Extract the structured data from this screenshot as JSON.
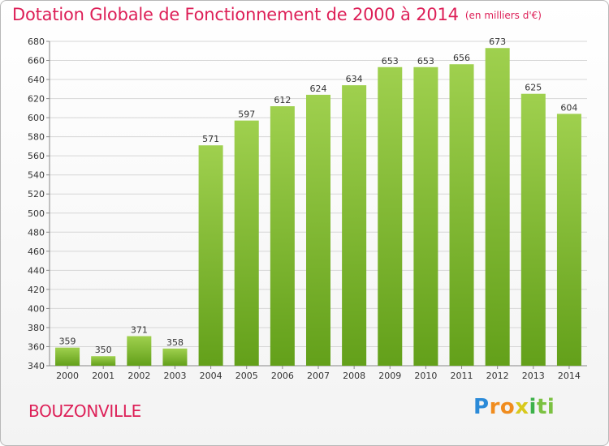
{
  "header": {
    "title": "Dotation Globale de Fonctionnement de 2000 à 2014",
    "subtitle": "(en milliers d'€)"
  },
  "footer": {
    "commune": "BOUZONVILLE",
    "logo_text": "Proxiti"
  },
  "colors": {
    "bar_light": "#9fd04e",
    "bar_dark": "#63a01a",
    "title": "#dd1f57",
    "grid": "#d6d6d6"
  },
  "chart_data": {
    "type": "bar",
    "categories": [
      "2000",
      "2001",
      "2002",
      "2003",
      "2004",
      "2005",
      "2006",
      "2007",
      "2008",
      "2009",
      "2010",
      "2011",
      "2012",
      "2013",
      "2014"
    ],
    "values": [
      359,
      350,
      371,
      358,
      571,
      597,
      612,
      624,
      634,
      653,
      653,
      656,
      673,
      625,
      604
    ],
    "title": "Dotation Globale de Fonctionnement de 2000 à 2014",
    "subtitle": "(en milliers d'€)",
    "xlabel": "",
    "ylabel": "",
    "ylim": [
      340,
      680
    ],
    "yticks": [
      340,
      360,
      380,
      400,
      420,
      440,
      460,
      480,
      500,
      520,
      540,
      560,
      580,
      600,
      620,
      640,
      660,
      680
    ],
    "grid": true,
    "legend": "none"
  }
}
